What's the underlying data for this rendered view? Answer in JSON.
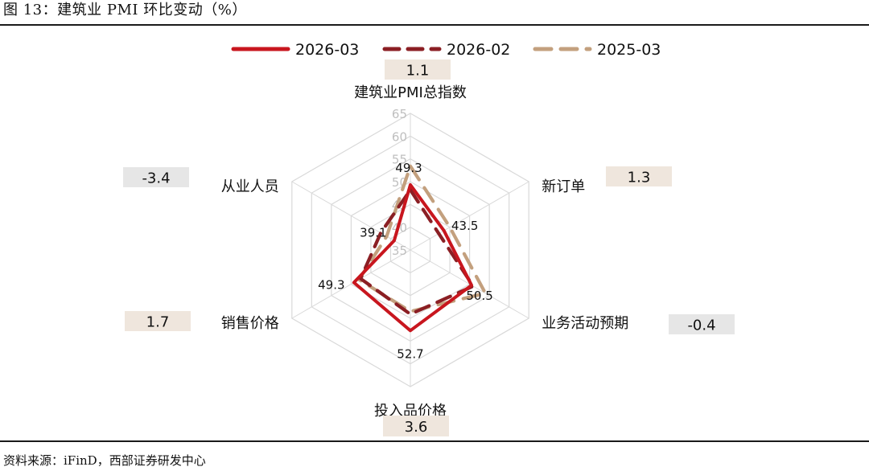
{
  "title": "图 13：建筑业 PMI 环比变动（%）",
  "source": "资料来源：iFinD，西部证券研发中心",
  "colors": {
    "background": "#ffffff",
    "grid": "#d9d9d9",
    "tick_label": "#bfbfbf",
    "change_box_positive": "#efe6dd",
    "change_box_negative": "#e6e6e6",
    "rule": "#1a1a1a"
  },
  "chart_data": {
    "type": "radar",
    "title": "",
    "axes": [
      "建筑业PMI总指数",
      "新订单",
      "业务活动预期",
      "投入品价格",
      "销售价格",
      "从业人员"
    ],
    "rlim": [
      35,
      65
    ],
    "ticks": [
      35,
      40,
      45,
      50,
      55,
      60,
      65
    ],
    "series": [
      {
        "name": "2026-03",
        "values": [
          49.3,
          43.5,
          50.5,
          52.7,
          49.3,
          39.1
        ],
        "color": "#c8161e",
        "style": "solid"
      },
      {
        "name": "2026-02",
        "values": [
          48.2,
          42.2,
          50.9,
          49.1,
          47.6,
          42.5
        ],
        "color": "#8b1f24",
        "style": "dashed"
      },
      {
        "name": "2025-03",
        "values": [
          53.4,
          45.0,
          54.0,
          48.5,
          48.0,
          41.0
        ],
        "color": "#c3a07e",
        "style": "dashed"
      }
    ],
    "point_labels": [
      "49.3",
      "43.5",
      "50.5",
      "52.7",
      "49.3",
      "39.1"
    ],
    "changes": [
      "1.1",
      "1.3",
      "-0.4",
      "3.6",
      "1.7",
      "-3.4"
    ],
    "legend_position": "top-center",
    "grid": true
  }
}
